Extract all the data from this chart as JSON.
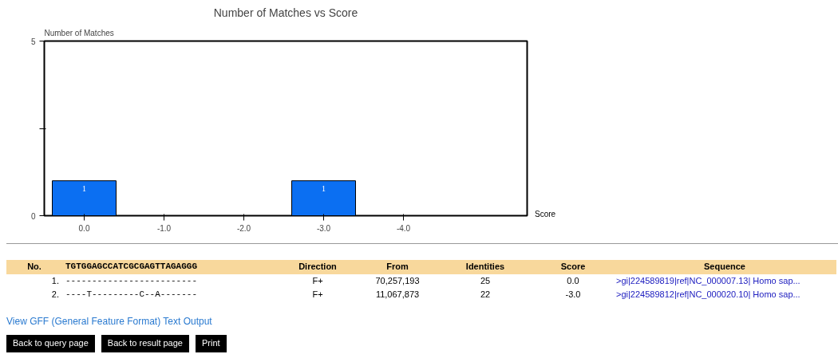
{
  "chart_data": {
    "type": "bar",
    "title": "Number of Matches vs Score",
    "ylabel": "Number of Matches",
    "categories": [
      "0.0",
      "-1.0",
      "-2.0",
      "-3.0",
      "-4.0"
    ],
    "values": [
      1,
      0,
      0,
      1,
      0
    ],
    "color": "#0b6ff2",
    "value_labels": [
      "1",
      null,
      null,
      "1",
      null
    ],
    "ylim": [
      0,
      5
    ],
    "yticks": [
      0,
      {
        "value": 2.5,
        "label": null
      },
      5
    ],
    "grid": false,
    "annotations": [
      "Score",
      "No.",
      "TGTGGAGCCATCGCGAGTTAGAGGG",
      "Direction",
      "From",
      "Identities",
      "Score",
      "Sequence",
      "1.",
      "-------------------------",
      "F+",
      "70,257,193",
      "25",
      "0.0",
      ">gi|224589819|ref|NC_000007.13| Homo sap...",
      "2.",
      "----T---------C--A-------",
      "F+",
      "11,067,873",
      "22",
      "-3.0",
      ">gi|224589812|ref|NC_000020.10| Homo sap...",
      "View GFF (General Feature Format) Text Output",
      "Back to query page",
      "Back to result page",
      "Print"
    ]
  }
}
